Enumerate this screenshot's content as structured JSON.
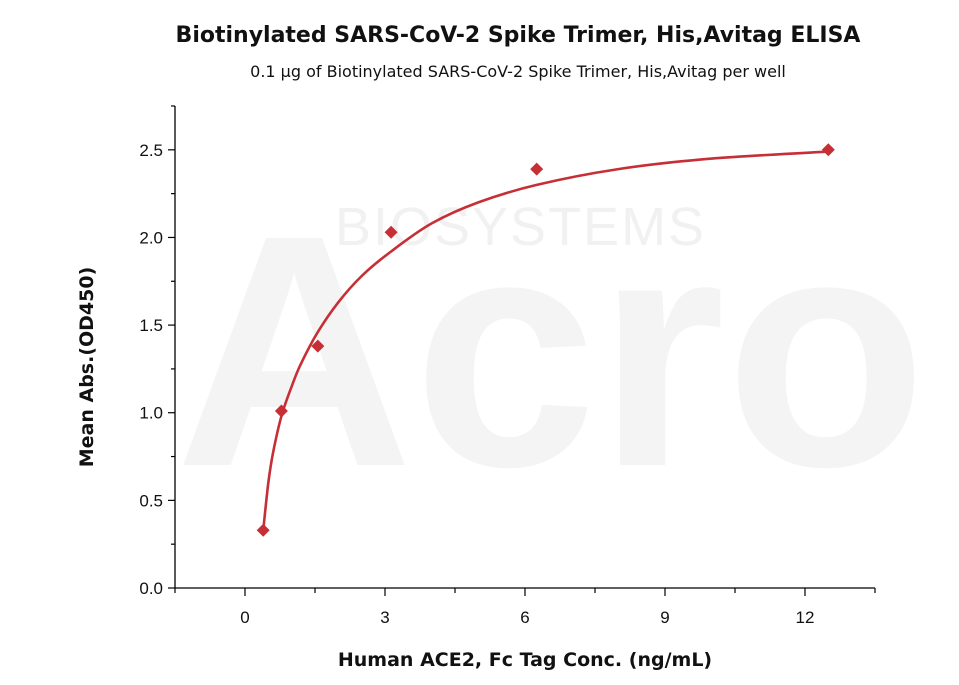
{
  "watermark": {
    "text": "BIOSYSTEMS",
    "logo_text": "Acro",
    "color": "#f1f1f1"
  },
  "chart_data": {
    "type": "scatter",
    "title": "Biotinylated SARS-CoV-2 Spike Trimer, His,Avitag ELISA",
    "subtitle": "0.1 μg of Biotinylated SARS-CoV-2 Spike Trimer, His,Avitag per well",
    "xlabel": "Human ACE2, Fc Tag Conc. (ng/mL)",
    "ylabel": "Mean Abs.(OD450)",
    "xlim": [
      -1.5,
      13.5
    ],
    "ylim": [
      0,
      2.75
    ],
    "xticks": [
      0,
      3,
      6,
      9,
      12
    ],
    "xtick_labels": [
      "0",
      "3",
      "6",
      "9",
      "12"
    ],
    "yticks": [
      0.0,
      0.5,
      1.0,
      1.5,
      2.0,
      2.5
    ],
    "ytick_labels": [
      "0.0",
      "0.5",
      "1.0",
      "1.5",
      "2.0",
      "2.5"
    ],
    "grid": false,
    "series": [
      {
        "marker": "diamond",
        "color": "#c62f35",
        "x": [
          0.39,
          0.78,
          1.56,
          3.13,
          6.25,
          12.5
        ],
        "y": [
          0.33,
          1.01,
          1.38,
          2.03,
          2.39,
          2.5
        ]
      }
    ],
    "fit": {
      "type": "curve",
      "color": "#c62f35",
      "x": [
        0.39,
        0.5,
        0.6,
        0.78,
        1.0,
        1.2,
        1.56,
        2.0,
        2.5,
        3.13,
        4.0,
        5.0,
        6.25,
        8.0,
        10.0,
        12.5
      ],
      "y": [
        0.33,
        0.6,
        0.77,
        0.98,
        1.15,
        1.28,
        1.46,
        1.63,
        1.78,
        1.92,
        2.08,
        2.2,
        2.3,
        2.39,
        2.45,
        2.49
      ]
    }
  }
}
